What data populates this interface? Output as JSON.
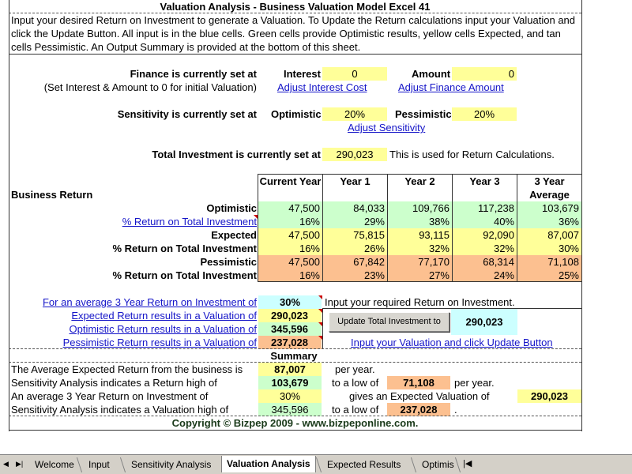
{
  "header": {
    "title": "Valuation Analysis - Business Valuation Model Excel 41",
    "intro_line1": "Input your desired Return on Investment to generate a Valuation. To Update the Return calculations input your Valuation and",
    "intro_line2": "click the Update Button. All input is in the blue cells. Green cells provide Optimistic results, yellow cells Expected, and tan",
    "intro_line3": "cells Pessimistic. An Output Summary is provided at the bottom of this sheet."
  },
  "finance": {
    "label": "Finance is currently set at",
    "note": "(Set Interest & Amount to 0 for initial Valuation)",
    "interest_label": "Interest",
    "interest_value": "0",
    "amount_label": "Amount",
    "amount_value": "0",
    "adjust_interest_link": "Adjust Interest Cost",
    "adjust_amount_link": "Adjust Finance Amount"
  },
  "sensitivity": {
    "label": "Sensitivity is currently set at",
    "optimistic_label": "Optimistic",
    "optimistic_value": "20%",
    "pessimistic_label": "Pessimistic",
    "pessimistic_value": "20%",
    "adjust_link": "Adjust Sensitivity"
  },
  "investment": {
    "label": "Total Investment is currently set at",
    "value": "290,023",
    "note": "This is used for Return Calculations."
  },
  "returns_table": {
    "section_label": "Business Return",
    "headers": [
      "Current Year",
      "Year 1",
      "Year 2",
      "Year 3",
      "3 Year Average"
    ],
    "rows": [
      {
        "label": "Optimistic",
        "values": [
          "47,500",
          "84,033",
          "109,766",
          "117,238",
          "103,679"
        ]
      },
      {
        "label": "% Return on Total Investment",
        "values": [
          "16%",
          "29%",
          "38%",
          "40%",
          "36%"
        ]
      },
      {
        "label": "Expected",
        "values": [
          "47,500",
          "75,815",
          "93,115",
          "92,090",
          "87,007"
        ]
      },
      {
        "label": "% Return on Total Investment",
        "values": [
          "16%",
          "26%",
          "32%",
          "32%",
          "30%"
        ]
      },
      {
        "label": "Pessimistic",
        "values": [
          "47,500",
          "67,842",
          "77,170",
          "68,314",
          "71,108"
        ]
      },
      {
        "label": "% Return on Total Investment",
        "values": [
          "16%",
          "23%",
          "27%",
          "24%",
          "25%"
        ]
      }
    ]
  },
  "valuation": {
    "avg_return_label": "For an average 3 Year Return on Investment of",
    "avg_return_value": "30%",
    "avg_return_note": "Input your required Return on Investment.",
    "expected_label": "Expected Return results in a Valuation of",
    "expected_value": "290,023",
    "optimistic_label": "Optimistic Return results in a Valuation of",
    "optimistic_value": "345,596",
    "pessimistic_label": "Pessimistic Return results in a Valuation of",
    "pessimistic_value": "237,028",
    "update_button": "Update Total Investment to",
    "update_value": "290,023",
    "update_link": "Input your Valuation and click Update Button"
  },
  "summary": {
    "title": "Summary",
    "line1_label": "The Average Expected Return from the business is",
    "line1_value": "87,007",
    "line1_suffix": "per year.",
    "line2_label": "Sensitivity Analysis indicates a Return high of",
    "line2_value": "103,679",
    "line2_mid": "to a low of",
    "line2_low": "71,108",
    "line2_suffix": "per year.",
    "line3_label": "An average 3 Year Return on Investment of",
    "line3_value": "30%",
    "line3_mid": "gives an Expected Valuation of",
    "line3_result": "290,023",
    "line4_label": "Sensitivity Analysis indicates a Valuation high of",
    "line4_value": "345,596",
    "line4_mid": "to a low of",
    "line4_low": "237,028",
    "copyright": "Copyright © Bizpep 2009 - www.bizpeponline.com."
  },
  "tabs": {
    "items": [
      "Welcome",
      "Input",
      "Sensitivity Analysis",
      "Valuation Analysis",
      "Expected Results",
      "Optimis"
    ],
    "active": "Valuation Analysis"
  }
}
